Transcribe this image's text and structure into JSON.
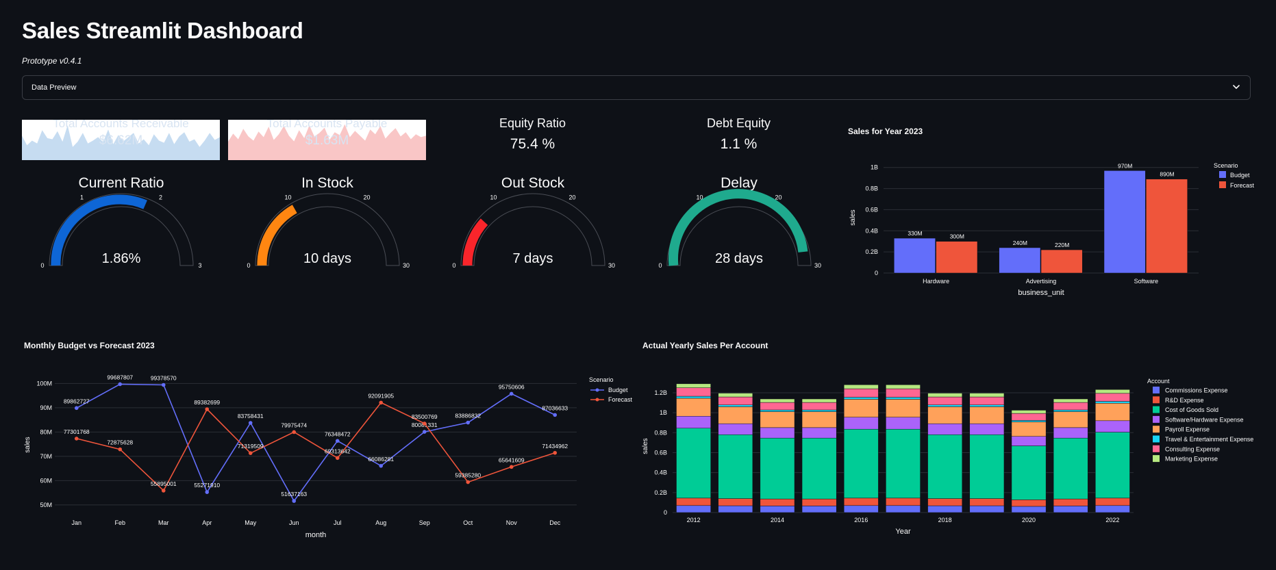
{
  "app": {
    "title": "Sales Streamlit Dashboard",
    "subtitle": "Prototype v0.4.1",
    "expander_label": "Data Preview",
    "expander_icon": "chevron-down-icon"
  },
  "colors": {
    "background": "#0e1117",
    "budget": "#636efa",
    "forecast": "#ef553b",
    "receivable_area": "#c6dcf1",
    "payable_area": "#f9c6c6",
    "current_ratio_gauge": "#0e66d6",
    "in_stock_gauge": "#ff8611",
    "out_stock_gauge": "#f9252b",
    "delay_gauge": "#1faa8e"
  },
  "metrics": [
    {
      "title": "Total Accounts Receivable",
      "value": "$6.62M"
    },
    {
      "title": "Total Accounts Payable",
      "value": "$1.63M"
    },
    {
      "title": "Equity Ratio",
      "value": "75.4 %"
    },
    {
      "title": "Debt Equity",
      "value": "1.1 %"
    }
  ],
  "gauges": [
    {
      "title": "Current Ratio",
      "display": "1.86%",
      "value": 1.86,
      "min": 0,
      "max": 3,
      "ticks": [
        "0",
        "1",
        "2",
        "3"
      ],
      "color": "#0e66d6"
    },
    {
      "title": "In Stock",
      "display": "10 days",
      "value": 10,
      "min": 0,
      "max": 30,
      "ticks": [
        "0",
        "10",
        "20",
        "30"
      ],
      "color": "#ff8611"
    },
    {
      "title": "Out Stock",
      "display": "7 days",
      "value": 7,
      "min": 0,
      "max": 30,
      "ticks": [
        "0",
        "10",
        "20",
        "30"
      ],
      "color": "#f9252b"
    },
    {
      "title": "Delay",
      "display": "28 days",
      "value": 28,
      "min": 0,
      "max": 30,
      "ticks": [
        "0",
        "10",
        "20",
        "30"
      ],
      "color": "#1faa8e"
    }
  ],
  "chart_data": [
    {
      "id": "receivable_spark",
      "type": "area",
      "color": "#c6dcf1",
      "values": [
        62,
        35,
        48,
        40,
        78,
        55,
        52,
        75,
        45,
        92,
        30,
        45,
        70,
        40,
        48,
        58,
        44,
        80,
        38,
        64,
        46,
        58,
        70,
        40,
        52,
        35,
        66,
        48,
        42,
        70,
        38,
        60,
        72,
        45,
        52,
        30,
        48,
        70,
        50,
        58
      ],
      "ylim": [
        0,
        100
      ]
    },
    {
      "id": "payable_spark",
      "type": "area",
      "color": "#f9c6c6",
      "values": [
        45,
        68,
        52,
        82,
        60,
        48,
        74,
        58,
        88,
        50,
        66,
        90,
        62,
        46,
        78,
        55,
        92,
        60,
        70,
        85,
        50,
        72,
        64,
        95,
        58,
        76,
        62,
        48,
        80,
        66,
        90,
        54,
        70,
        84,
        60,
        72,
        52,
        66,
        58,
        62
      ],
      "ylim": [
        0,
        100
      ]
    },
    {
      "id": "sales_2023",
      "type": "bar",
      "title": "Sales for Year 2023",
      "xlabel": "business_unit",
      "ylabel": "sales",
      "categories": [
        "Hardware",
        "Advertising",
        "Software"
      ],
      "series": [
        {
          "name": "Budget",
          "color": "#636efa",
          "values": [
            330000000,
            240000000,
            970000000
          ],
          "labels": [
            "330M",
            "240M",
            "970M"
          ]
        },
        {
          "name": "Forecast",
          "color": "#ef553b",
          "values": [
            300000000,
            220000000,
            890000000
          ],
          "labels": [
            "300M",
            "220M",
            "890M"
          ]
        }
      ],
      "yticks": [
        0,
        200000000,
        400000000,
        600000000,
        800000000,
        1000000000
      ],
      "yticklabels": [
        "0",
        "0.2B",
        "0.4B",
        "0.6B",
        "0.8B",
        "1B"
      ],
      "ylim": [
        0,
        1050000000
      ],
      "legend_title": "Scenario",
      "legend": "top-right",
      "grid": true
    },
    {
      "id": "monthly_budget_forecast",
      "type": "line",
      "title": "Monthly Budget vs Forecast 2023",
      "xlabel": "month",
      "ylabel": "sales",
      "categories": [
        "Jan",
        "Feb",
        "Mar",
        "Apr",
        "May",
        "Jun",
        "Jul",
        "Aug",
        "Sep",
        "Oct",
        "Nov",
        "Dec"
      ],
      "series": [
        {
          "name": "Budget",
          "color": "#636efa",
          "values": [
            89862727,
            99687807,
            99378570,
            55271910,
            83758431,
            51637163,
            76348472,
            66086281,
            80081331,
            83886832,
            95750606,
            87036633
          ]
        },
        {
          "name": "Forecast",
          "color": "#ef553b",
          "values": [
            77301768,
            72875628,
            55895001,
            89382699,
            71319509,
            79975474,
            69313642,
            92091905,
            83500769,
            59385280,
            65641609,
            71434962
          ]
        }
      ],
      "yticks": [
        50000000,
        60000000,
        70000000,
        80000000,
        90000000,
        100000000
      ],
      "yticklabels": [
        "50M",
        "60M",
        "70M",
        "80M",
        "90M",
        "100M"
      ],
      "ylim": [
        48000000,
        101500000
      ],
      "legend_title": "Scenario",
      "legend": "top-right",
      "grid": true
    },
    {
      "id": "yearly_account_sales",
      "type": "bar",
      "stacked": true,
      "title": "Actual Yearly Sales Per Account",
      "xlabel": "Year",
      "ylabel": "sales",
      "categories": [
        "2012",
        "2013",
        "2014",
        "2015",
        "2016",
        "2017",
        "2018",
        "2019",
        "2020",
        "2021",
        "2022"
      ],
      "xticklabels": [
        "2012",
        "",
        "2014",
        "",
        "2016",
        "",
        "2018",
        "",
        "2020",
        "",
        "2022"
      ],
      "series": [
        {
          "name": "Commissions Expense",
          "color": "#636efa",
          "values": [
            70000000,
            68000000,
            66000000,
            66000000,
            70000000,
            70000000,
            68000000,
            68000000,
            62000000,
            66000000,
            70000000
          ]
        },
        {
          "name": "R&D Expense",
          "color": "#ef553b",
          "values": [
            75000000,
            72000000,
            70000000,
            70000000,
            75000000,
            75000000,
            72000000,
            72000000,
            66000000,
            70000000,
            75000000
          ]
        },
        {
          "name": "Cost of Goods Sold",
          "color": "#00cc96",
          "values": [
            700000000,
            640000000,
            610000000,
            610000000,
            690000000,
            690000000,
            640000000,
            640000000,
            540000000,
            610000000,
            660000000
          ]
        },
        {
          "name": "Software/Hardware Expense",
          "color": "#ab63fa",
          "values": [
            120000000,
            110000000,
            105000000,
            105000000,
            120000000,
            120000000,
            110000000,
            110000000,
            95000000,
            105000000,
            115000000
          ]
        },
        {
          "name": "Payroll Expense",
          "color": "#ffa15a",
          "values": [
            180000000,
            170000000,
            160000000,
            160000000,
            180000000,
            180000000,
            170000000,
            170000000,
            145000000,
            160000000,
            175000000
          ]
        },
        {
          "name": "Travel & Entertainment Expense",
          "color": "#19d3f3",
          "values": [
            20000000,
            18000000,
            17000000,
            17000000,
            20000000,
            20000000,
            18000000,
            18000000,
            15000000,
            17000000,
            19000000
          ]
        },
        {
          "name": "Consulting Expense",
          "color": "#ff6692",
          "values": [
            85000000,
            80000000,
            75000000,
            75000000,
            85000000,
            85000000,
            80000000,
            80000000,
            70000000,
            75000000,
            80000000
          ]
        },
        {
          "name": "Marketing Expense",
          "color": "#b6e880",
          "values": [
            40000000,
            38000000,
            35000000,
            35000000,
            40000000,
            40000000,
            38000000,
            38000000,
            32000000,
            35000000,
            38000000
          ]
        }
      ],
      "yticks": [
        0,
        200000000,
        400000000,
        600000000,
        800000000,
        1000000000,
        1200000000
      ],
      "yticklabels": [
        "0",
        "0.2B",
        "0.4B",
        "0.6B",
        "0.8B",
        "1B",
        "1.2B"
      ],
      "ylim": [
        0,
        1330000000
      ],
      "legend_title": "Account",
      "legend": "top-right",
      "grid": true
    }
  ]
}
